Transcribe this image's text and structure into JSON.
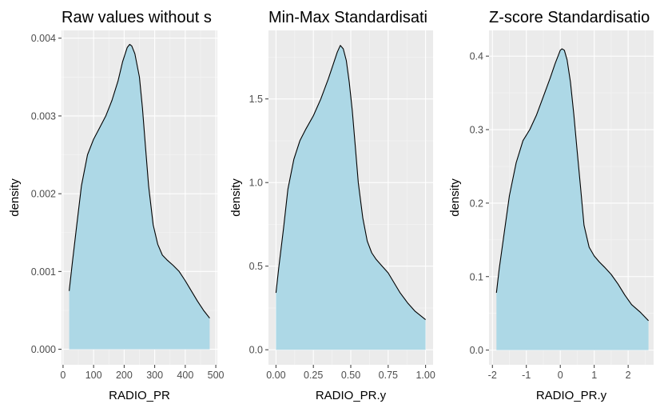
{
  "chart_data": [
    {
      "type": "area",
      "title": "Raw values without s",
      "xlabel": "RADIO_PR",
      "ylabel": "density",
      "xlim": [
        -5,
        505
      ],
      "ylim": [
        -0.0002,
        0.0041
      ],
      "x_ticks": [
        0,
        100,
        200,
        300,
        400,
        500
      ],
      "x_tick_labels": [
        "0",
        "100",
        "200",
        "300",
        "400",
        "500"
      ],
      "y_ticks": [
        0,
        0.001,
        0.002,
        0.003,
        0.004
      ],
      "y_tick_labels": [
        "0.000",
        "0.001",
        "0.002",
        "0.003",
        "0.004"
      ],
      "grid": true,
      "fill_color": "#ADD8E6",
      "series": [
        {
          "x": [
            20,
            30,
            45,
            60,
            80,
            100,
            120,
            140,
            160,
            180,
            195,
            210,
            218,
            225,
            235,
            250,
            260,
            270,
            280,
            295,
            310,
            325,
            340,
            360,
            380,
            400,
            420,
            440,
            460,
            480
          ],
          "y": [
            0.00075,
            0.0011,
            0.0016,
            0.0021,
            0.0025,
            0.0027,
            0.00285,
            0.003,
            0.0032,
            0.00345,
            0.0037,
            0.00388,
            0.00392,
            0.0039,
            0.0038,
            0.0035,
            0.0031,
            0.0026,
            0.0021,
            0.0016,
            0.00135,
            0.00121,
            0.00115,
            0.00108,
            0.001,
            0.00088,
            0.00075,
            0.00062,
            0.0005,
            0.0004
          ]
        }
      ]
    },
    {
      "type": "area",
      "title": "Min-Max Standardisati",
      "xlabel": "RADIO_PR.y",
      "ylabel": "density",
      "xlim": [
        -0.05,
        1.05
      ],
      "ylim": [
        -0.09,
        1.91
      ],
      "x_ticks": [
        0,
        0.25,
        0.5,
        0.75,
        1
      ],
      "x_tick_labels": [
        "0.00",
        "0.25",
        "0.50",
        "0.75",
        "1.00"
      ],
      "y_ticks": [
        0,
        0.5,
        1,
        1.5
      ],
      "y_tick_labels": [
        "0.0",
        "0.5",
        "1.0",
        "1.5"
      ],
      "grid": true,
      "fill_color": "#ADD8E6",
      "series": [
        {
          "x": [
            0,
            0.02,
            0.05,
            0.08,
            0.12,
            0.16,
            0.2,
            0.25,
            0.3,
            0.35,
            0.38,
            0.41,
            0.43,
            0.45,
            0.47,
            0.49,
            0.51,
            0.53,
            0.55,
            0.58,
            0.61,
            0.64,
            0.67,
            0.71,
            0.75,
            0.79,
            0.83,
            0.88,
            0.93,
            1.0
          ],
          "y": [
            0.34,
            0.5,
            0.72,
            0.96,
            1.14,
            1.25,
            1.32,
            1.4,
            1.5,
            1.62,
            1.7,
            1.78,
            1.82,
            1.8,
            1.73,
            1.6,
            1.43,
            1.22,
            1.0,
            0.79,
            0.65,
            0.58,
            0.54,
            0.5,
            0.46,
            0.4,
            0.34,
            0.28,
            0.23,
            0.18
          ]
        }
      ]
    },
    {
      "type": "area",
      "title": "Z-score Standardisatio",
      "xlabel": "RADIO_PR.y",
      "ylabel": "density",
      "xlim": [
        -2.1,
        2.75
      ],
      "ylim": [
        -0.02,
        0.435
      ],
      "x_ticks": [
        -2,
        -1,
        0,
        1,
        2
      ],
      "x_tick_labels": [
        "-2",
        "-1",
        "0",
        "1",
        "2"
      ],
      "y_ticks": [
        0,
        0.1,
        0.2,
        0.3,
        0.4
      ],
      "y_tick_labels": [
        "0.0",
        "0.1",
        "0.2",
        "0.3",
        "0.4"
      ],
      "grid": true,
      "fill_color": "#ADD8E6",
      "series": [
        {
          "x": [
            -1.88,
            -1.8,
            -1.65,
            -1.5,
            -1.3,
            -1.1,
            -0.9,
            -0.7,
            -0.5,
            -0.3,
            -0.15,
            0,
            0.05,
            0.12,
            0.2,
            0.3,
            0.4,
            0.5,
            0.6,
            0.7,
            0.85,
            1.0,
            1.15,
            1.3,
            1.5,
            1.7,
            1.9,
            2.1,
            2.35,
            2.6
          ],
          "y": [
            0.078,
            0.11,
            0.16,
            0.21,
            0.255,
            0.285,
            0.3,
            0.32,
            0.345,
            0.37,
            0.39,
            0.408,
            0.41,
            0.408,
            0.395,
            0.365,
            0.32,
            0.27,
            0.22,
            0.17,
            0.14,
            0.128,
            0.12,
            0.113,
            0.103,
            0.09,
            0.075,
            0.062,
            0.052,
            0.04
          ]
        }
      ]
    }
  ]
}
